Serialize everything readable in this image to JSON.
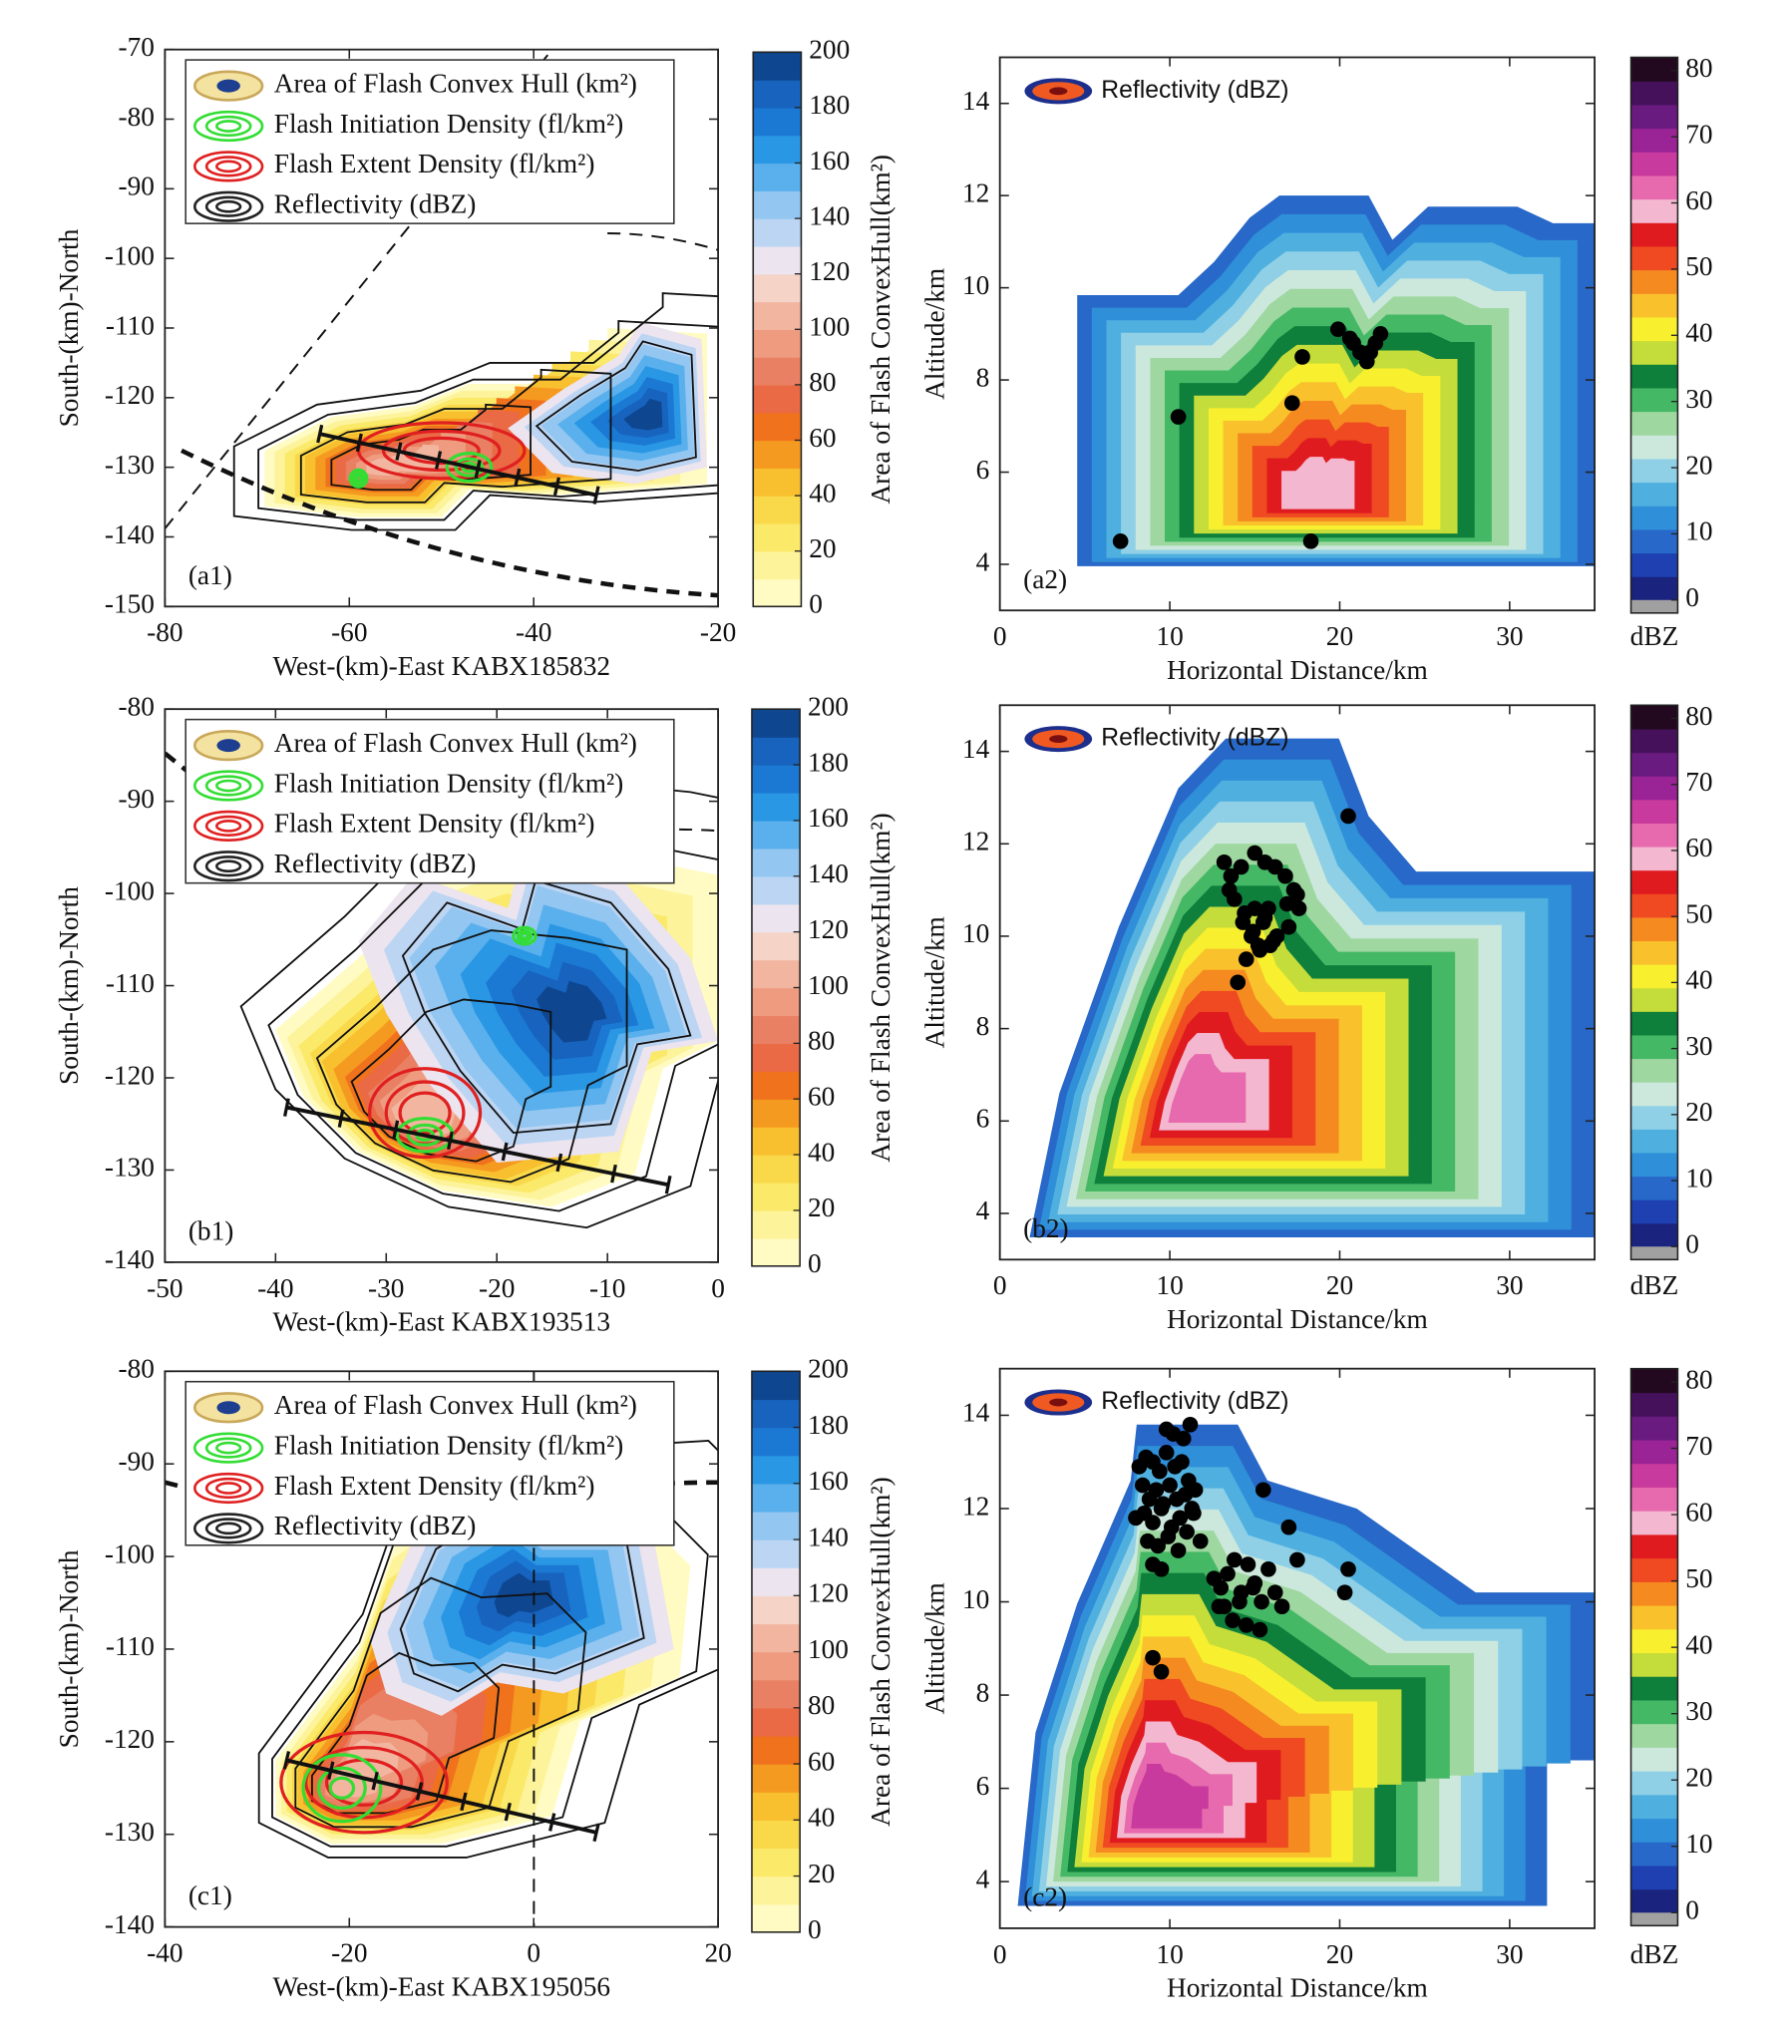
{
  "chart_data": [
    {
      "type": "map",
      "panel_label": "(a1)",
      "xlabel": "West-(km)-East KABX185832",
      "ylabel": "South-(km)-North",
      "xlim": [
        -80,
        -20
      ],
      "ylim": [
        -150,
        -70
      ],
      "xticks": [
        -80,
        -60,
        -40,
        -20
      ],
      "yticks": [
        -150,
        -140,
        -130,
        -120,
        -110,
        -100,
        -90,
        -80,
        -70
      ],
      "legend": [
        "Area of Flash Convex Hull (km²)",
        "Flash Initiation Density  (fl/km²)",
        "Flash Extent Density  (fl/km²)",
        "Reflectivity (dBZ)"
      ],
      "colorbar": {
        "label": "Area of Flash ConvexHull(km²)",
        "lim": [
          0,
          200
        ],
        "ticks": [
          0,
          20,
          40,
          60,
          80,
          100,
          120,
          140,
          160,
          180,
          200
        ],
        "colors": [
          "#fffbc2",
          "#fdf39a",
          "#fbe96a",
          "#f9d94a",
          "#f8bf2f",
          "#f59a20",
          "#f0721d",
          "#ea6a45",
          "#e98063",
          "#ee9b7f",
          "#f2b6a0",
          "#f5d4c7",
          "#ece4ee",
          "#bcd5f3",
          "#93c6f1",
          "#5ab0ec",
          "#2a97e4",
          "#1b79d4",
          "#1763bd",
          "#0e4690"
        ]
      }
    },
    {
      "type": "scatter",
      "panel_label": "(a2)",
      "xlabel": "Horizontal Distance/km",
      "ylabel": "Altitude/km",
      "legend": [
        "Reflectivity (dBZ)"
      ],
      "color": "#000000",
      "xlim": [
        0,
        35
      ],
      "ylim": [
        3,
        15
      ],
      "xticks": [
        0,
        10,
        20,
        30
      ],
      "yticks": [
        4,
        6,
        8,
        10,
        12,
        14
      ],
      "x": [
        7.1,
        10.5,
        17.8,
        17.2,
        18.3,
        19.9,
        20.6,
        21.2,
        20.8,
        21.6,
        22.1,
        22.4,
        21.8
      ],
      "values": [
        4.5,
        7.2,
        8.5,
        7.5,
        4.5,
        9.1,
        8.9,
        8.6,
        8.8,
        8.4,
        8.8,
        9.0,
        8.6
      ],
      "colorbar": {
        "label": "dBZ",
        "lim": [
          0,
          82
        ],
        "ticks": [
          0,
          10,
          20,
          30,
          40,
          50,
          60,
          70,
          80
        ],
        "under_color": "#a0a0a0",
        "colors": [
          "#1a237e",
          "#1e40b0",
          "#2868c8",
          "#2f8fd8",
          "#4fb0e0",
          "#8fd0e6",
          "#cce8dd",
          "#9fd7a0",
          "#45b866",
          "#0f7f3c",
          "#c4dd3a",
          "#f8ef2f",
          "#f9c12c",
          "#f58a20",
          "#ef4a22",
          "#e01b1f",
          "#f4b7d0",
          "#e66aad",
          "#c83a9d",
          "#9a2396",
          "#6a1b80",
          "#44115a",
          "#22091f"
        ]
      }
    },
    {
      "type": "map",
      "panel_label": "(b1)",
      "xlabel": "West-(km)-East KABX193513",
      "ylabel": "South-(km)-North",
      "xlim": [
        -50,
        0
      ],
      "ylim": [
        -140,
        -80
      ],
      "xticks": [
        -50,
        -40,
        -30,
        -20,
        -10,
        0
      ],
      "yticks": [
        -140,
        -130,
        -120,
        -110,
        -100,
        -90,
        -80
      ],
      "legend": [
        "Area of Flash Convex Hull (km²)",
        "Flash Initiation Density  (fl/km²)",
        "Flash Extent Density  (fl/km²)",
        "Reflectivity (dBZ)"
      ],
      "colorbar": {
        "label": "Area of Flash ConvexHull(km²)",
        "lim": [
          0,
          200
        ],
        "ticks": [
          0,
          20,
          40,
          60,
          80,
          100,
          120,
          140,
          160,
          180,
          200
        ],
        "colors": [
          "#fffbc2",
          "#fdf39a",
          "#fbe96a",
          "#f9d94a",
          "#f8bf2f",
          "#f59a20",
          "#f0721d",
          "#ea6a45",
          "#e98063",
          "#ee9b7f",
          "#f2b6a0",
          "#f5d4c7",
          "#ece4ee",
          "#bcd5f3",
          "#93c6f1",
          "#5ab0ec",
          "#2a97e4",
          "#1b79d4",
          "#1763bd",
          "#0e4690"
        ]
      }
    },
    {
      "type": "scatter",
      "panel_label": "(b2)",
      "xlabel": "Horizontal Distance/km",
      "ylabel": "Altitude/km",
      "legend": [
        "Reflectivity (dBZ)"
      ],
      "color": "#000000",
      "xlim": [
        0,
        35
      ],
      "ylim": [
        3,
        15
      ],
      "xticks": [
        0,
        10,
        20,
        30
      ],
      "yticks": [
        4,
        6,
        8,
        10,
        12,
        14
      ],
      "x": [
        20.5,
        13.2,
        13.6,
        14.2,
        15.0,
        15.6,
        16.2,
        16.8,
        17.3,
        17.6,
        17.0,
        13.8,
        14.4,
        14.8,
        15.2,
        15.5,
        15.8,
        16.1,
        15.3,
        14.9,
        15.6,
        16.3,
        14.5,
        14.0,
        13.5,
        16.9,
        17.5,
        15.0,
        15.9,
        14.3
      ],
      "values": [
        12.6,
        11.6,
        11.3,
        11.5,
        11.8,
        11.6,
        11.5,
        11.3,
        11.0,
        10.6,
        10.2,
        10.8,
        10.5,
        10.0,
        9.8,
        10.3,
        10.6,
        9.9,
        9.7,
        10.1,
        10.4,
        10.0,
        9.5,
        9.0,
        11.0,
        10.7,
        10.9,
        10.6,
        9.8,
        10.3
      ],
      "colorbar": {
        "label": "dBZ",
        "lim": [
          0,
          82
        ],
        "ticks": [
          0,
          10,
          20,
          30,
          40,
          50,
          60,
          70,
          80
        ],
        "under_color": "#a0a0a0",
        "colors": [
          "#1a237e",
          "#1e40b0",
          "#2868c8",
          "#2f8fd8",
          "#4fb0e0",
          "#8fd0e6",
          "#cce8dd",
          "#9fd7a0",
          "#45b866",
          "#0f7f3c",
          "#c4dd3a",
          "#f8ef2f",
          "#f9c12c",
          "#f58a20",
          "#ef4a22",
          "#e01b1f",
          "#f4b7d0",
          "#e66aad",
          "#c83a9d",
          "#9a2396",
          "#6a1b80",
          "#44115a",
          "#22091f"
        ]
      }
    },
    {
      "type": "map",
      "panel_label": "(c1)",
      "xlabel": "West-(km)-East KABX195056",
      "ylabel": "South-(km)-North",
      "xlim": [
        -40,
        20
      ],
      "ylim": [
        -140,
        -80
      ],
      "xticks": [
        -40,
        -20,
        0,
        20
      ],
      "yticks": [
        -140,
        -130,
        -120,
        -110,
        -100,
        -90,
        -80
      ],
      "legend": [
        "Area of Flash Convex Hull (km²)",
        "Flash Initiation Density  (fl/km²)",
        "Flash Extent Density  (fl/km²)",
        "Reflectivity (dBZ)"
      ],
      "colorbar": {
        "label": "Area of Flash ConvexHull(km²)",
        "lim": [
          0,
          200
        ],
        "ticks": [
          0,
          20,
          40,
          60,
          80,
          100,
          120,
          140,
          160,
          180,
          200
        ],
        "colors": [
          "#fffbc2",
          "#fdf39a",
          "#fbe96a",
          "#f9d94a",
          "#f8bf2f",
          "#f59a20",
          "#f0721d",
          "#ea6a45",
          "#e98063",
          "#ee9b7f",
          "#f2b6a0",
          "#f5d4c7",
          "#ece4ee",
          "#bcd5f3",
          "#93c6f1",
          "#5ab0ec",
          "#2a97e4",
          "#1b79d4",
          "#1763bd",
          "#0e4690"
        ]
      }
    },
    {
      "type": "scatter",
      "panel_label": "(c2)",
      "xlabel": "Horizontal Distance/km",
      "ylabel": "Altitude/km",
      "legend": [
        "Reflectivity (dBZ)"
      ],
      "color": "#000000",
      "xlim": [
        0,
        35
      ],
      "ylim": [
        3,
        15
      ],
      "xticks": [
        0,
        10,
        20,
        30
      ],
      "yticks": [
        4,
        6,
        8,
        10,
        12,
        14
      ],
      "x": [
        9.8,
        10.2,
        10.8,
        11.2,
        8.2,
        8.6,
        9.0,
        9.4,
        9.8,
        10.3,
        10.7,
        11.1,
        11.5,
        8.4,
        8.8,
        9.2,
        9.6,
        10.0,
        10.4,
        10.9,
        11.3,
        8.0,
        8.5,
        9.0,
        9.5,
        10.1,
        10.6,
        11.0,
        11.4,
        8.7,
        9.3,
        9.9,
        10.5,
        11.8,
        9.0,
        9.5,
        13.0,
        13.4,
        13.8,
        14.2,
        14.6,
        15.0,
        15.4,
        15.8,
        16.2,
        16.6,
        13.2,
        13.7,
        14.1,
        14.5,
        14.9,
        15.3,
        12.6,
        12.9,
        15.5,
        17.0,
        17.5,
        20.5,
        20.3,
        9.0,
        9.5
      ],
      "values": [
        13.7,
        13.6,
        13.5,
        13.8,
        12.9,
        13.1,
        13.0,
        12.8,
        13.2,
        12.9,
        13.0,
        12.6,
        12.4,
        12.5,
        12.2,
        12.4,
        12.1,
        12.5,
        12.2,
        12.3,
        12.0,
        11.8,
        11.9,
        11.7,
        12.0,
        11.6,
        11.8,
        11.5,
        11.9,
        11.3,
        11.2,
        11.4,
        11.1,
        11.3,
        10.8,
        10.7,
        10.3,
        10.6,
        10.9,
        10.2,
        10.8,
        10.4,
        10.0,
        10.7,
        10.2,
        9.9,
        9.9,
        9.6,
        10.0,
        9.5,
        10.3,
        9.4,
        10.5,
        9.9,
        12.4,
        11.6,
        10.9,
        10.7,
        10.2,
        8.8,
        8.5
      ],
      "colorbar": {
        "label": "dBZ",
        "lim": [
          0,
          82
        ],
        "ticks": [
          0,
          10,
          20,
          30,
          40,
          50,
          60,
          70,
          80
        ],
        "under_color": "#a0a0a0",
        "colors": [
          "#1a237e",
          "#1e40b0",
          "#2868c8",
          "#2f8fd8",
          "#4fb0e0",
          "#8fd0e6",
          "#cce8dd",
          "#9fd7a0",
          "#45b866",
          "#0f7f3c",
          "#c4dd3a",
          "#f8ef2f",
          "#f9c12c",
          "#f58a20",
          "#ef4a22",
          "#e01b1f",
          "#f4b7d0",
          "#e66aad",
          "#c83a9d",
          "#9a2396",
          "#6a1b80",
          "#44115a",
          "#22091f"
        ]
      }
    }
  ]
}
